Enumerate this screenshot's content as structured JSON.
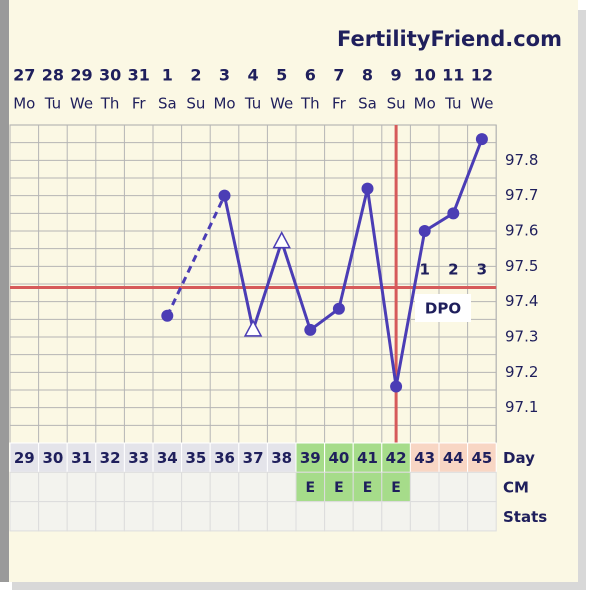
{
  "chart_data": {
    "type": "line",
    "title": "FertilityFriend.com",
    "categories": [
      "27",
      "28",
      "29",
      "30",
      "31",
      "1",
      "2",
      "3",
      "4",
      "5",
      "6",
      "7",
      "8",
      "9",
      "10",
      "11",
      "12"
    ],
    "weekdays": [
      "Mo",
      "Tu",
      "We",
      "Th",
      "Fr",
      "Sa",
      "Su",
      "Mo",
      "Tu",
      "We",
      "Th",
      "Fr",
      "Sa",
      "Su",
      "Mo",
      "Tu",
      "We"
    ],
    "series": [
      {
        "color": "#4b3db5",
        "values": [
          null,
          null,
          null,
          null,
          null,
          97.36,
          null,
          97.7,
          97.32,
          97.57,
          97.32,
          97.38,
          97.72,
          97.16,
          97.6,
          97.65,
          97.86
        ]
      }
    ],
    "open_points": [
      8,
      9
    ],
    "ylim": [
      97.0,
      97.9
    ],
    "yticks": [
      97.1,
      97.2,
      97.3,
      97.4,
      97.5,
      97.6,
      97.7,
      97.8
    ],
    "grid": true,
    "coverline": 97.44,
    "ovulation_index": 13,
    "reference_color": "#d65a5a",
    "dpo_labels": [
      "1",
      "2",
      "3"
    ],
    "dpo_title": "DPO",
    "row_labels": [
      "Day",
      "CM",
      "Stats"
    ],
    "cycle_days": [
      29,
      30,
      31,
      32,
      33,
      34,
      35,
      36,
      37,
      38,
      39,
      40,
      41,
      42,
      43,
      44,
      45
    ],
    "cm": [
      null,
      null,
      null,
      null,
      null,
      null,
      null,
      null,
      null,
      null,
      "E",
      "E",
      "E",
      "E",
      null,
      null,
      null
    ]
  }
}
